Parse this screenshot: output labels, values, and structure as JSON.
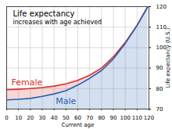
{
  "chart_data": {
    "type": "area",
    "title": "Life expectancy",
    "subtitle": "increases with age achieved",
    "x_label": "Current age",
    "y_label": "Life expectancy (U.S.)",
    "x": [
      0,
      10,
      20,
      30,
      40,
      50,
      60,
      70,
      80,
      90,
      100,
      110,
      119
    ],
    "series": [
      {
        "name": "Female",
        "color": "#d9312b",
        "values": [
          79.5,
          79.7,
          80,
          80.5,
          81.2,
          82.3,
          84,
          86.5,
          90,
          95.5,
          102.5,
          111,
          120
        ]
      },
      {
        "name": "Male",
        "color": "#2a5fb0",
        "values": [
          74.5,
          74.8,
          75.2,
          76.2,
          77.4,
          79,
          81.7,
          85,
          88.8,
          94.5,
          102,
          110.8,
          120
        ]
      }
    ],
    "xlim": [
      0,
      120
    ],
    "xticks": [
      0,
      10,
      20,
      30,
      40,
      50,
      60,
      70,
      80,
      90,
      100,
      110,
      120
    ],
    "ylim": [
      70,
      120
    ],
    "yticks": [
      70,
      80,
      90,
      100,
      110,
      120
    ],
    "grid": true
  }
}
